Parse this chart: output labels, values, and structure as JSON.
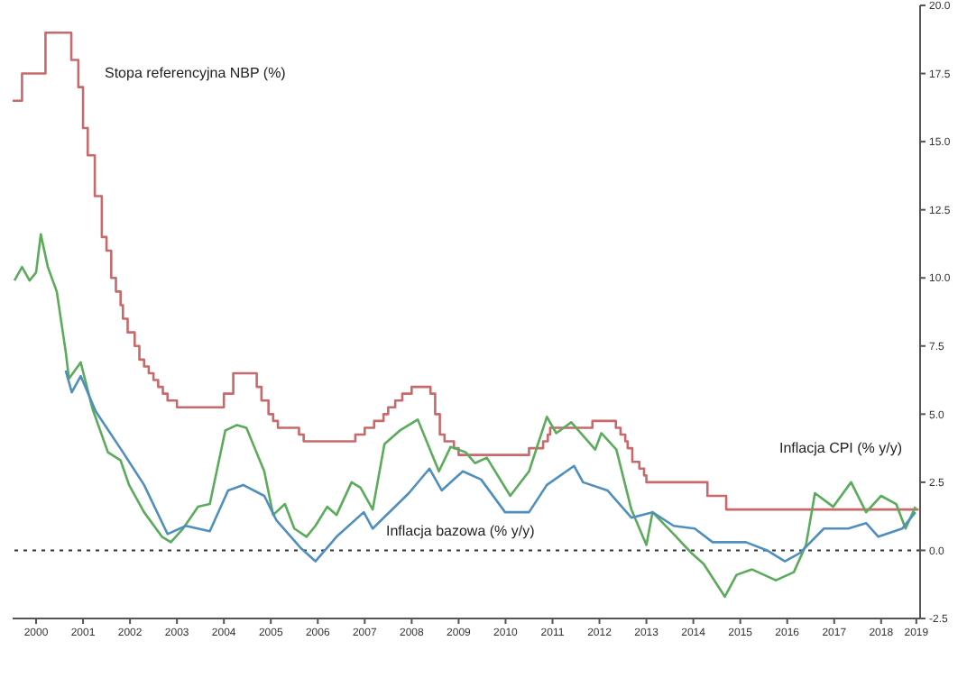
{
  "chart_data": {
    "type": "line",
    "xlim": [
      2000,
      2019.33
    ],
    "xticks": [
      {
        "value": 2000.5,
        "label": "2000"
      },
      {
        "value": 2001.5,
        "label": "2001"
      },
      {
        "value": 2002.5,
        "label": "2002"
      },
      {
        "value": 2003.5,
        "label": "2003"
      },
      {
        "value": 2004.5,
        "label": "2004"
      },
      {
        "value": 2005.5,
        "label": "2005"
      },
      {
        "value": 2006.5,
        "label": "2006"
      },
      {
        "value": 2007.5,
        "label": "2007"
      },
      {
        "value": 2008.5,
        "label": "2008"
      },
      {
        "value": 2009.5,
        "label": "2009"
      },
      {
        "value": 2010.5,
        "label": "2010"
      },
      {
        "value": 2011.5,
        "label": "2011"
      },
      {
        "value": 2012.5,
        "label": "2012"
      },
      {
        "value": 2013.5,
        "label": "2013"
      },
      {
        "value": 2014.5,
        "label": "2014"
      },
      {
        "value": 2015.5,
        "label": "2015"
      },
      {
        "value": 2016.5,
        "label": "2016"
      },
      {
        "value": 2017.5,
        "label": "2017"
      },
      {
        "value": 2018.5,
        "label": "2018"
      },
      {
        "value": 2019.25,
        "label": "2019"
      }
    ],
    "ylim": [
      -2.5,
      20
    ],
    "yticks": [
      {
        "value": -2.5,
        "label": "-2.5"
      },
      {
        "value": 0,
        "label": "0.0"
      },
      {
        "value": 2.5,
        "label": "2.5"
      },
      {
        "value": 5,
        "label": "5.0"
      },
      {
        "value": 7.5,
        "label": "7.5"
      },
      {
        "value": 10,
        "label": "10.0"
      },
      {
        "value": 12.5,
        "label": "12.5"
      },
      {
        "value": 15,
        "label": "15.0"
      },
      {
        "value": 17.5,
        "label": "17.5"
      },
      {
        "value": 20,
        "label": "20.0"
      }
    ],
    "grid": false,
    "legend": false,
    "marker": "none",
    "ref_lines": [
      {
        "axis": "y",
        "value": 0,
        "color": "#333333",
        "line_style": "dotted"
      }
    ],
    "series": [
      {
        "name": "Stopa referencyjna NBP (%)",
        "type": "step",
        "color": "#c8696b",
        "x": [
          2000,
          2000.2,
          2000.7,
          2001.25,
          2001.4,
          2001.5,
          2001.6,
          2001.75,
          2001.9,
          2002,
          2002.1,
          2002.2,
          2002.3,
          2002.35,
          2002.45,
          2002.6,
          2002.7,
          2002.8,
          2002.9,
          2003,
          2003.1,
          2003.2,
          2003.3,
          2003.5,
          2004.5,
          2004.7,
          2005.2,
          2005.3,
          2005.45,
          2005.55,
          2005.65,
          2006.1,
          2006.2,
          2007.3,
          2007.5,
          2007.7,
          2007.9,
          2008,
          2008.15,
          2008.3,
          2008.5,
          2008.9,
          2009,
          2009.1,
          2009.2,
          2009.4,
          2009.5,
          2011,
          2011.3,
          2011.4,
          2011.45,
          2012.35,
          2012.85,
          2012.95,
          2013.05,
          2013.1,
          2013.2,
          2013.35,
          2013.45,
          2013.5,
          2014.8,
          2015.2,
          2019.3
        ],
        "values": [
          16.5,
          17.5,
          19,
          18,
          17,
          15.5,
          14.5,
          13,
          11.5,
          11,
          10,
          9.5,
          9,
          8.5,
          8,
          7.5,
          7,
          6.75,
          6.5,
          6.25,
          6,
          5.75,
          5.5,
          5.25,
          5.75,
          6.5,
          6,
          5.5,
          5,
          4.75,
          4.5,
          4.25,
          4,
          4.25,
          4.5,
          4.75,
          5,
          5.25,
          5.5,
          5.75,
          6,
          5.75,
          5,
          4.25,
          4,
          3.75,
          3.5,
          3.75,
          4,
          4.25,
          4.5,
          4.75,
          4.5,
          4.25,
          4,
          3.75,
          3.25,
          3,
          2.75,
          2.5,
          2,
          1.5,
          1.5
        ]
      },
      {
        "name": "Inflacja CPI (% y/y)",
        "type": "line",
        "color": "#5aab5a",
        "x": [
          2000.04,
          2000.2,
          2000.36,
          2000.5,
          2000.6,
          2000.75,
          2000.94,
          2001.13,
          2001.2,
          2001.45,
          2001.7,
          2002.03,
          2002.3,
          2002.48,
          2002.8,
          2003.18,
          2003.37,
          2003.63,
          2003.95,
          2004.2,
          2004.53,
          2004.78,
          2004.98,
          2005.17,
          2005.36,
          2005.55,
          2005.8,
          2006,
          2006.26,
          2006.45,
          2006.7,
          2006.9,
          2007.22,
          2007.41,
          2007.67,
          2007.92,
          2008.25,
          2008.63,
          2009.08,
          2009.33,
          2009.65,
          2009.85,
          2010.1,
          2010.6,
          2011,
          2011.38,
          2011.58,
          2011.9,
          2012.41,
          2012.54,
          2012.86,
          2013.18,
          2013.5,
          2013.63,
          2014.08,
          2014.46,
          2014.72,
          2015.17,
          2015.42,
          2015.75,
          2016.26,
          2016.64,
          2016.9,
          2017.09,
          2017.48,
          2017.86,
          2018.18,
          2018.5,
          2018.82,
          2019.02,
          2019.23
        ],
        "values": [
          9.9,
          10.4,
          9.9,
          10.2,
          11.6,
          10.4,
          9.5,
          7.3,
          6.3,
          6.9,
          5.2,
          3.6,
          3.3,
          2.4,
          1.4,
          0.5,
          0.3,
          0.8,
          1.6,
          1.7,
          4.4,
          4.6,
          4.5,
          3.7,
          2.9,
          1.3,
          1.7,
          0.8,
          0.5,
          0.9,
          1.6,
          1.3,
          2.5,
          2.3,
          1.5,
          3.9,
          4.4,
          4.8,
          2.9,
          3.8,
          3.6,
          3.2,
          3.4,
          2,
          2.9,
          4.9,
          4.3,
          4.7,
          3.7,
          4.3,
          3.7,
          1.5,
          0.2,
          1.4,
          0.6,
          -0.1,
          -0.5,
          -1.7,
          -0.9,
          -0.7,
          -1.1,
          -0.8,
          0.2,
          2.1,
          1.6,
          2.5,
          1.4,
          2,
          1.7,
          0.8,
          1.6
        ]
      },
      {
        "name": "Inflacja bazowa (% y/y)",
        "type": "line",
        "color": "#4f8fbf",
        "x": [
          2001.13,
          2001.26,
          2001.45,
          2001.77,
          2002.35,
          2002.8,
          2003.3,
          2003.69,
          2004.2,
          2004.59,
          2004.91,
          2005.36,
          2005.62,
          2006.13,
          2006.45,
          2006.9,
          2007.48,
          2007.67,
          2008.44,
          2008.88,
          2009.14,
          2009.59,
          2009.98,
          2010.49,
          2011,
          2011.38,
          2011.96,
          2012.15,
          2012.67,
          2013.18,
          2013.63,
          2014.08,
          2014.53,
          2014.91,
          2015.62,
          2016.07,
          2016.45,
          2016.77,
          2017.28,
          2017.8,
          2018.18,
          2018.44,
          2018.95,
          2019.23
        ],
        "values": [
          6.6,
          5.8,
          6.4,
          5.1,
          3.6,
          2.4,
          0.6,
          0.9,
          0.7,
          2.2,
          2.4,
          2,
          1.1,
          0.1,
          -0.4,
          0.5,
          1.4,
          0.8,
          2.1,
          3,
          2.2,
          2.9,
          2.6,
          1.4,
          1.4,
          2.4,
          3.1,
          2.5,
          2.2,
          1.2,
          1.4,
          0.9,
          0.8,
          0.3,
          0.3,
          0,
          -0.4,
          -0.1,
          0.8,
          0.8,
          1,
          0.5,
          0.8,
          1.4
        ]
      }
    ]
  }
}
